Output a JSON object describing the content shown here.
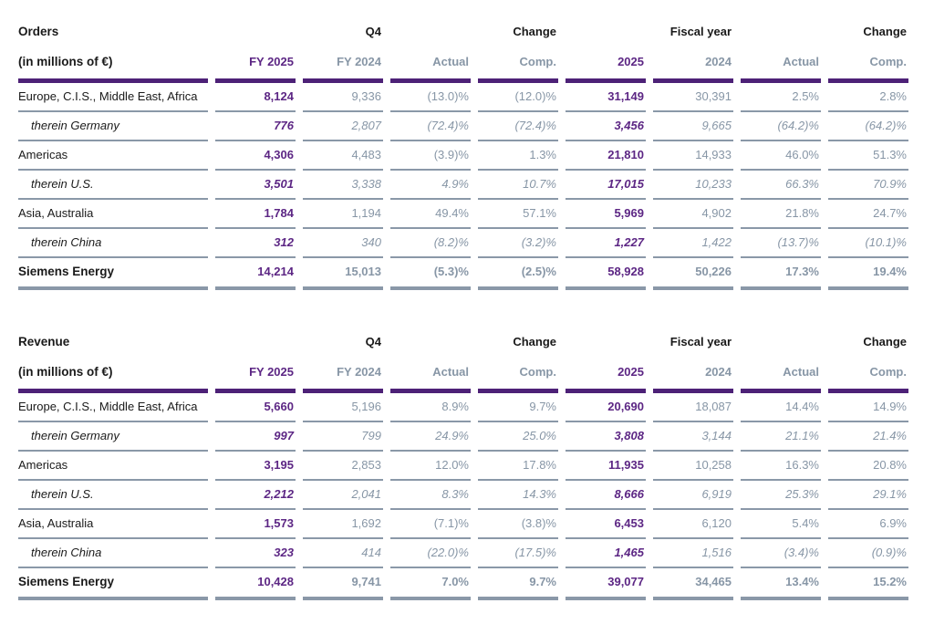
{
  "colors": {
    "accent_purple": "#4D2177",
    "value_purple": "#5C2684",
    "muted_gray": "#8796A6",
    "line_gray": "#8A98A8",
    "text_black": "#1A1A1A"
  },
  "tables": [
    {
      "title": "Orders",
      "unit_label": "(in millions of €)",
      "group_headers": [
        "",
        "Q4",
        "",
        "Change",
        "",
        "Fiscal year",
        "",
        "Change"
      ],
      "column_headers": [
        "FY 2025",
        "FY 2024",
        "Actual",
        "Comp.",
        "2025",
        "2024",
        "Actual",
        "Comp."
      ],
      "rows": [
        {
          "label": "Europe, C.I.S., Middle East, Africa",
          "emphasis": "normal",
          "values": [
            "8,124",
            "9,336",
            "(13.0)%",
            "(12.0)%",
            "31,149",
            "30,391",
            "2.5%",
            "2.8%"
          ]
        },
        {
          "label": "therein Germany",
          "emphasis": "italic",
          "values": [
            "776",
            "2,807",
            "(72.4)%",
            "(72.4)%",
            "3,456",
            "9,665",
            "(64.2)%",
            "(64.2)%"
          ]
        },
        {
          "label": "Americas",
          "emphasis": "normal",
          "values": [
            "4,306",
            "4,483",
            "(3.9)%",
            "1.3%",
            "21,810",
            "14,933",
            "46.0%",
            "51.3%"
          ]
        },
        {
          "label": "therein U.S.",
          "emphasis": "italic",
          "values": [
            "3,501",
            "3,338",
            "4.9%",
            "10.7%",
            "17,015",
            "10,233",
            "66.3%",
            "70.9%"
          ]
        },
        {
          "label": "Asia, Australia",
          "emphasis": "normal",
          "values": [
            "1,784",
            "1,194",
            "49.4%",
            "57.1%",
            "5,969",
            "4,902",
            "21.8%",
            "24.7%"
          ]
        },
        {
          "label": "therein China",
          "emphasis": "italic",
          "values": [
            "312",
            "340",
            "(8.2)%",
            "(3.2)%",
            "1,227",
            "1,422",
            "(13.7)%",
            "(10.1)%"
          ]
        },
        {
          "label": "Siemens Energy",
          "emphasis": "total",
          "values": [
            "14,214",
            "15,013",
            "(5.3)%",
            "(2.5)%",
            "58,928",
            "50,226",
            "17.3%",
            "19.4%"
          ]
        }
      ]
    },
    {
      "title": "Revenue",
      "unit_label": "(in millions of €)",
      "group_headers": [
        "",
        "Q4",
        "",
        "Change",
        "",
        "Fiscal year",
        "",
        "Change"
      ],
      "column_headers": [
        "FY 2025",
        "FY 2024",
        "Actual",
        "Comp.",
        "2025",
        "2024",
        "Actual",
        "Comp."
      ],
      "rows": [
        {
          "label": "Europe, C.I.S., Middle East, Africa",
          "emphasis": "normal",
          "values": [
            "5,660",
            "5,196",
            "8.9%",
            "9.7%",
            "20,690",
            "18,087",
            "14.4%",
            "14.9%"
          ]
        },
        {
          "label": "therein Germany",
          "emphasis": "italic",
          "values": [
            "997",
            "799",
            "24.9%",
            "25.0%",
            "3,808",
            "3,144",
            "21.1%",
            "21.4%"
          ]
        },
        {
          "label": "Americas",
          "emphasis": "normal",
          "values": [
            "3,195",
            "2,853",
            "12.0%",
            "17.8%",
            "11,935",
            "10,258",
            "16.3%",
            "20.8%"
          ]
        },
        {
          "label": "therein U.S.",
          "emphasis": "italic",
          "values": [
            "2,212",
            "2,041",
            "8.3%",
            "14.3%",
            "8,666",
            "6,919",
            "25.3%",
            "29.1%"
          ]
        },
        {
          "label": "Asia, Australia",
          "emphasis": "normal",
          "values": [
            "1,573",
            "1,692",
            "(7.1)%",
            "(3.8)%",
            "6,453",
            "6,120",
            "5.4%",
            "6.9%"
          ]
        },
        {
          "label": "therein China",
          "emphasis": "italic",
          "values": [
            "323",
            "414",
            "(22.0)%",
            "(17.5)%",
            "1,465",
            "1,516",
            "(3.4)%",
            "(0.9)%"
          ]
        },
        {
          "label": "Siemens Energy",
          "emphasis": "total",
          "values": [
            "10,428",
            "9,741",
            "7.0%",
            "9.7%",
            "39,077",
            "34,465",
            "13.4%",
            "15.2%"
          ]
        }
      ]
    }
  ]
}
